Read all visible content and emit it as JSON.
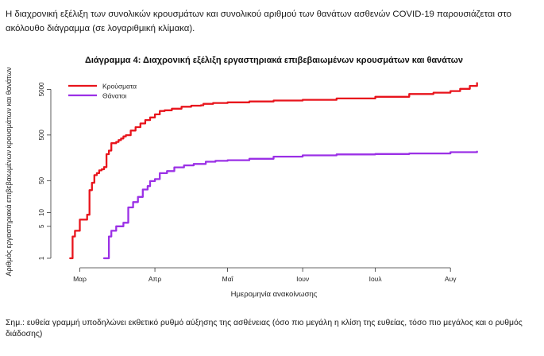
{
  "intro_text": "Η διαχρονική εξέλιξη των συνολικών κρουσμάτων και συνολικού αριθμού των θανάτων ασθενών COVID-19 παρουσιάζεται στο ακόλουθο διάγραμμα (σε λογαριθμική κλίμακα).",
  "footnote": "Σημ.: ευθεία γραμμή υποδηλώνει εκθετικό ρυθμό αύξησης της ασθένειας (όσο πιο μεγάλη η κλίση της ευθείας, τόσο πιο μεγάλος και ο ρυθμός διάδοσης)",
  "chart_data": {
    "type": "line",
    "title": "Διάγραμμα 4: Διαχρονική εξέλιξη εργαστηριακά επιβεβαιωμένων κρουσμάτων και θανάτων",
    "xlabel": "Ημερομηνία ανακοίνωσης",
    "ylabel": "Αριθμός εργαστηριακά επιβεβαιωμένων κρουσμάτων και θανάτων",
    "y_scale": "log",
    "ylim": [
      1,
      7000
    ],
    "y_ticks": [
      1,
      5,
      10,
      50,
      500,
      5000
    ],
    "x_ticks": [
      {
        "date": "2020-03-01",
        "label": "Μαρ"
      },
      {
        "date": "2020-04-01",
        "label": "Απρ"
      },
      {
        "date": "2020-05-01",
        "label": "Μαΐ"
      },
      {
        "date": "2020-06-01",
        "label": "Ιουν"
      },
      {
        "date": "2020-07-01",
        "label": "Ιουλ"
      },
      {
        "date": "2020-08-01",
        "label": "Αυγ"
      }
    ],
    "xlim": [
      "2020-02-20",
      "2020-08-17"
    ],
    "grid": false,
    "legend_position": "top-left",
    "series": [
      {
        "name": "Κρούσματα",
        "color": "#e8141c",
        "points": [
          [
            "2020-02-26",
            1
          ],
          [
            "2020-02-27",
            3
          ],
          [
            "2020-02-28",
            4
          ],
          [
            "2020-02-29",
            4
          ],
          [
            "2020-03-01",
            7
          ],
          [
            "2020-03-03",
            7
          ],
          [
            "2020-03-04",
            9
          ],
          [
            "2020-03-05",
            31
          ],
          [
            "2020-03-06",
            45
          ],
          [
            "2020-03-07",
            66
          ],
          [
            "2020-03-08",
            73
          ],
          [
            "2020-03-09",
            84
          ],
          [
            "2020-03-10",
            89
          ],
          [
            "2020-03-11",
            99
          ],
          [
            "2020-03-12",
            190
          ],
          [
            "2020-03-13",
            228
          ],
          [
            "2020-03-14",
            331
          ],
          [
            "2020-03-15",
            331
          ],
          [
            "2020-03-16",
            352
          ],
          [
            "2020-03-17",
            387
          ],
          [
            "2020-03-18",
            418
          ],
          [
            "2020-03-19",
            464
          ],
          [
            "2020-03-20",
            495
          ],
          [
            "2020-03-22",
            624
          ],
          [
            "2020-03-24",
            743
          ],
          [
            "2020-03-26",
            892
          ],
          [
            "2020-03-28",
            1061
          ],
          [
            "2020-03-30",
            1212
          ],
          [
            "2020-04-01",
            1415
          ],
          [
            "2020-04-03",
            1673
          ],
          [
            "2020-04-05",
            1735
          ],
          [
            "2020-04-08",
            1884
          ],
          [
            "2020-04-12",
            2081
          ],
          [
            "2020-04-16",
            2192
          ],
          [
            "2020-04-20",
            2235
          ],
          [
            "2020-04-21",
            2401
          ],
          [
            "2020-04-25",
            2506
          ],
          [
            "2020-05-01",
            2591
          ],
          [
            "2020-05-10",
            2710
          ],
          [
            "2020-05-20",
            2840
          ],
          [
            "2020-06-01",
            2952
          ],
          [
            "2020-06-15",
            3148
          ],
          [
            "2020-07-01",
            3432
          ],
          [
            "2020-07-15",
            3940
          ],
          [
            "2020-07-25",
            4227
          ],
          [
            "2020-08-01",
            4587
          ],
          [
            "2020-08-05",
            5123
          ],
          [
            "2020-08-09",
            5942
          ],
          [
            "2020-08-12",
            6858
          ]
        ]
      },
      {
        "name": "Θάνατοι",
        "color": "#9b30e6",
        "points": [
          [
            "2020-03-11",
            1
          ],
          [
            "2020-03-12",
            1
          ],
          [
            "2020-03-13",
            3
          ],
          [
            "2020-03-14",
            4
          ],
          [
            "2020-03-15",
            4
          ],
          [
            "2020-03-16",
            5
          ],
          [
            "2020-03-17",
            5
          ],
          [
            "2020-03-18",
            5
          ],
          [
            "2020-03-19",
            6
          ],
          [
            "2020-03-20",
            6
          ],
          [
            "2020-03-21",
            13
          ],
          [
            "2020-03-23",
            17
          ],
          [
            "2020-03-25",
            22
          ],
          [
            "2020-03-27",
            32
          ],
          [
            "2020-03-29",
            38
          ],
          [
            "2020-03-30",
            49
          ],
          [
            "2020-04-01",
            54
          ],
          [
            "2020-04-03",
            73
          ],
          [
            "2020-04-06",
            81
          ],
          [
            "2020-04-09",
            98
          ],
          [
            "2020-04-13",
            108
          ],
          [
            "2020-04-17",
            116
          ],
          [
            "2020-04-22",
            130
          ],
          [
            "2020-04-26",
            136
          ],
          [
            "2020-05-01",
            140
          ],
          [
            "2020-05-10",
            151
          ],
          [
            "2020-05-20",
            168
          ],
          [
            "2020-06-01",
            179
          ],
          [
            "2020-06-15",
            188
          ],
          [
            "2020-07-01",
            192
          ],
          [
            "2020-07-15",
            197
          ],
          [
            "2020-08-01",
            210
          ],
          [
            "2020-08-12",
            216
          ]
        ]
      }
    ]
  }
}
